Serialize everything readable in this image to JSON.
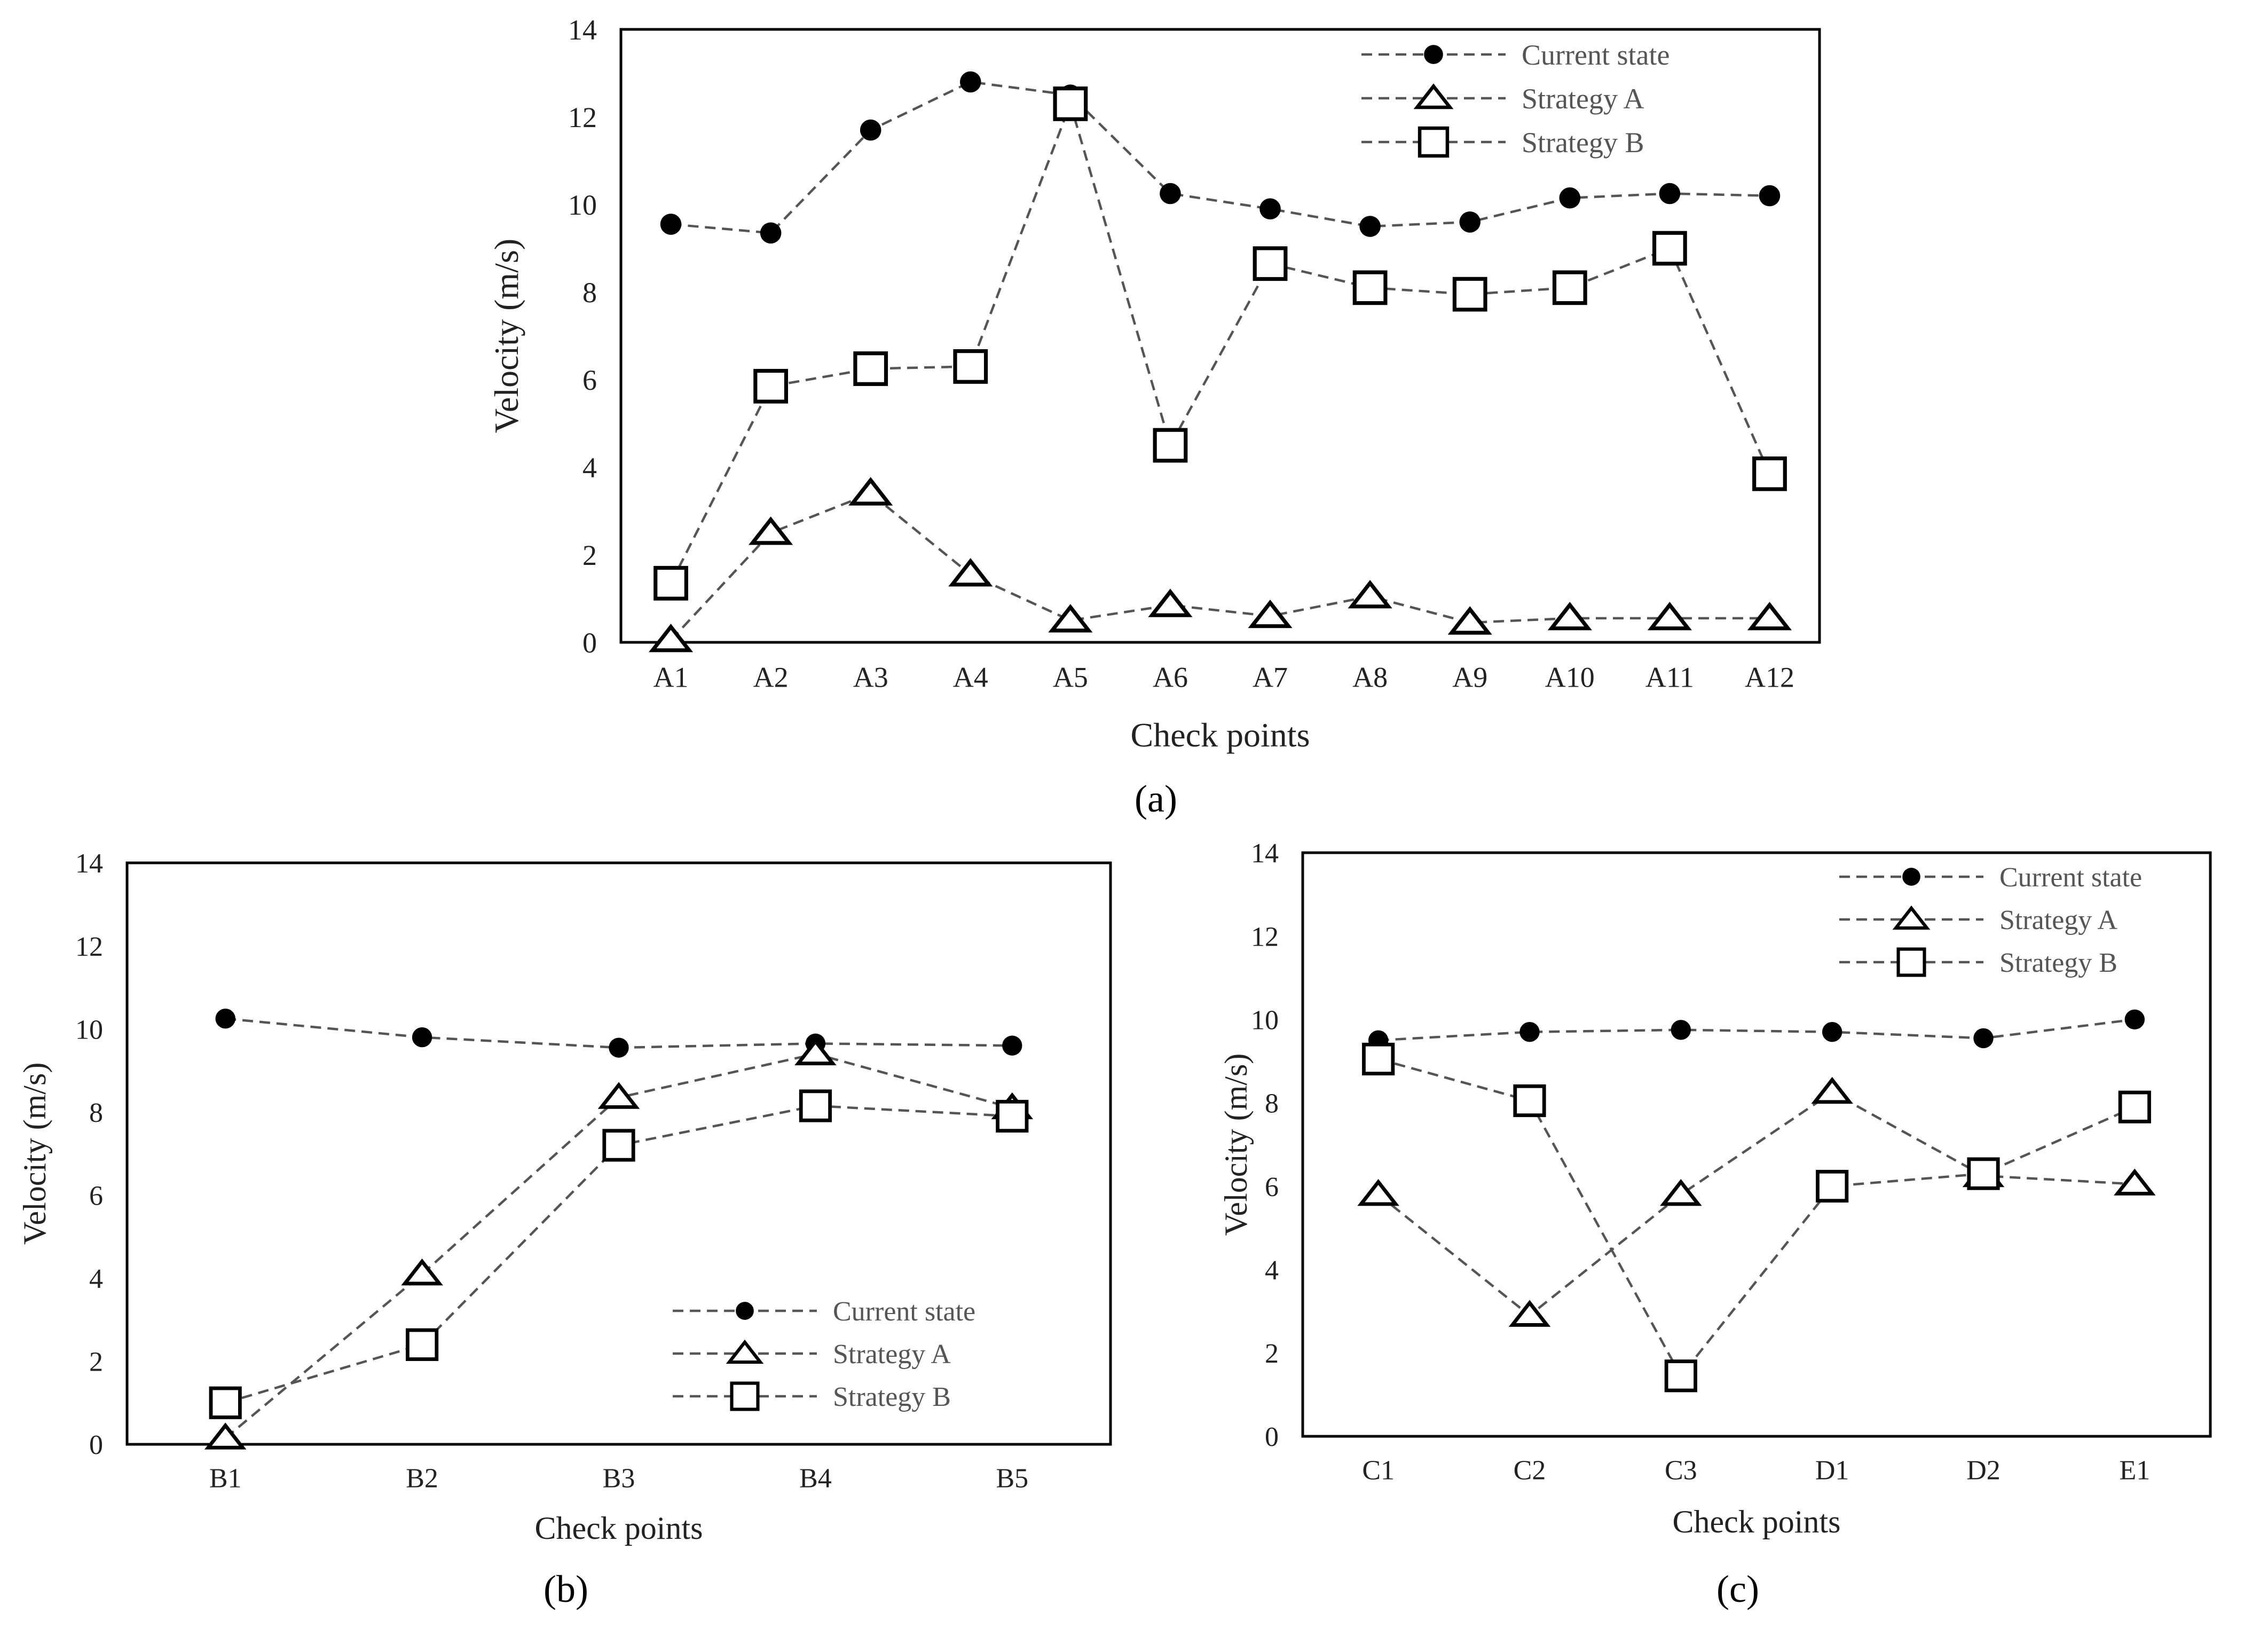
{
  "figure": {
    "panel_labels": [
      "(a)",
      "(b)",
      "(c)"
    ]
  },
  "styles": {
    "line_color": "#555555",
    "marker_color": "#000000",
    "frame_color": "#000000",
    "text_color": "#222222",
    "legend_text_color": "#555555"
  },
  "chart_data": [
    {
      "id": "a",
      "type": "line",
      "caption": "(a)",
      "xlabel": "Check points",
      "ylabel": "Velocity (m/s)",
      "ylim": [
        0,
        14
      ],
      "yticks": [
        0,
        2,
        4,
        6,
        8,
        10,
        12,
        14
      ],
      "grid": false,
      "legend_position": "top-right",
      "categories": [
        "A1",
        "A2",
        "A3",
        "A4",
        "A5",
        "A6",
        "A7",
        "A8",
        "A9",
        "A10",
        "A11",
        "A12"
      ],
      "series": [
        {
          "name": "Current state",
          "marker": "circle",
          "values": [
            9.55,
            9.35,
            11.7,
            12.8,
            12.5,
            10.25,
            9.9,
            9.5,
            9.6,
            10.15,
            10.25,
            10.2
          ]
        },
        {
          "name": "Strategy A",
          "marker": "triangle",
          "values": [
            0.05,
            2.5,
            3.4,
            1.55,
            0.5,
            0.85,
            0.6,
            1.05,
            0.45,
            0.55,
            0.55,
            0.55
          ]
        },
        {
          "name": "Strategy B",
          "marker": "square",
          "values": [
            1.35,
            5.85,
            6.25,
            6.3,
            12.3,
            4.5,
            8.65,
            8.1,
            7.95,
            8.1,
            9.0,
            3.85
          ]
        }
      ]
    },
    {
      "id": "b",
      "type": "line",
      "caption": "(b)",
      "xlabel": "Check points",
      "ylabel": "Velocity (m/s)",
      "ylim": [
        0,
        14
      ],
      "yticks": [
        0,
        2,
        4,
        6,
        8,
        10,
        12,
        14
      ],
      "grid": false,
      "legend_position": "bottom-right",
      "categories": [
        "B1",
        "B2",
        "B3",
        "B4",
        "B5"
      ],
      "series": [
        {
          "name": "Current state",
          "marker": "circle",
          "values": [
            10.25,
            9.8,
            9.55,
            9.65,
            9.6
          ]
        },
        {
          "name": "Strategy A",
          "marker": "triangle",
          "values": [
            0.15,
            4.1,
            8.35,
            9.4,
            8.1
          ]
        },
        {
          "name": "Strategy B",
          "marker": "square",
          "values": [
            1.0,
            2.4,
            7.2,
            8.15,
            7.9
          ]
        }
      ]
    },
    {
      "id": "c",
      "type": "line",
      "caption": "(c)",
      "xlabel": "Check points",
      "ylabel": "Velocity (m/s)",
      "ylim": [
        0,
        14
      ],
      "yticks": [
        0,
        2,
        4,
        6,
        8,
        10,
        12,
        14
      ],
      "grid": false,
      "legend_position": "top-right",
      "categories": [
        "C1",
        "C2",
        "C3",
        "D1",
        "D2",
        "E1"
      ],
      "series": [
        {
          "name": "Current state",
          "marker": "circle",
          "values": [
            9.5,
            9.7,
            9.75,
            9.7,
            9.55,
            10.0
          ]
        },
        {
          "name": "Strategy A",
          "marker": "triangle",
          "values": [
            5.8,
            2.9,
            5.8,
            8.25,
            6.25,
            6.05
          ]
        },
        {
          "name": "Strategy B",
          "marker": "square",
          "values": [
            9.05,
            8.05,
            1.45,
            6.0,
            6.3,
            7.9
          ]
        }
      ]
    }
  ]
}
